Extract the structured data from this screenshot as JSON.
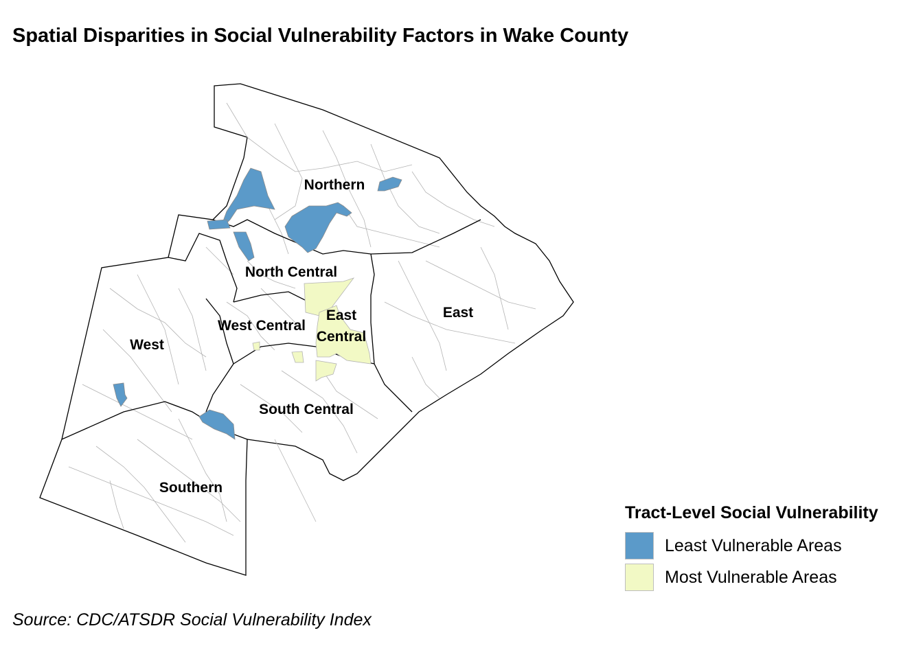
{
  "title": "Spatial Disparities in Social Vulnerability Factors in Wake County",
  "source": "Source: CDC/ATSDR Social Vulnerability Index",
  "colors": {
    "least_vulnerable": "#5b9ac9",
    "most_vulnerable": "#f2f9c5",
    "boundary": "#000000",
    "tract_lines": "#b3b3b3"
  },
  "regions": {
    "northern": "Northern",
    "north_central": "North Central",
    "west_central": "West Central",
    "east_central_line1": "East",
    "east_central_line2": "Central",
    "east": "East",
    "west": "West",
    "south_central": "South Central",
    "southern": "Southern"
  },
  "legend": {
    "title": "Tract-Level Social Vulnerability",
    "items": [
      {
        "label": "Least Vulnerable Areas",
        "color": "#5b9ac9"
      },
      {
        "label": "Most Vulnerable Areas",
        "color": "#f2f9c5"
      }
    ]
  }
}
